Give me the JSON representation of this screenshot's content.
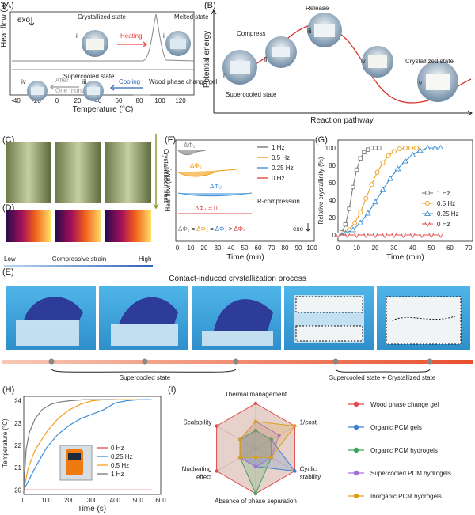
{
  "panels": {
    "A": {
      "letter": "(A)",
      "exo": "exo",
      "ylabel": "Heat flow (W g⁻¹)",
      "xlabel": "Temperature (°C)",
      "xticks": [
        "-40",
        "-20",
        "0",
        "20",
        "40",
        "60",
        "80",
        "100",
        "120"
      ],
      "states": {
        "i": "i",
        "ii": "ii",
        "iii": "iii",
        "iv": "iv"
      },
      "crystallized_state": "Crystallized state",
      "melted_state": "Melted state",
      "heating": "Heating",
      "supercooled_state": "Supercooled state",
      "cooling": "Cooling",
      "after": "After",
      "one_month": "One month",
      "legend": "Wood phase change gel",
      "colors": {
        "heating": "#e8403a",
        "cooling": "#2f63b8",
        "after": "#999999",
        "curve": "#888888"
      }
    },
    "B": {
      "letter": "(B)",
      "ylabel": "Potential energy",
      "xlabel": "Reaction pathway",
      "compress": "Compress",
      "release": "Release",
      "crystallized_state": "Crystallized state",
      "supercooled_state": "Supercooled state",
      "roman": [
        "i",
        "ii",
        "iii",
        "iv",
        "v"
      ],
      "curve_color": "#d9302a"
    },
    "C": {
      "letter": "(C)",
      "front_label": "Crystallization front"
    },
    "D": {
      "letter": "(D)",
      "low": "Low",
      "strain": "Compressive strain",
      "high": "High"
    },
    "F": {
      "letter": "(F)",
      "ylabel": "Heat flow (mW)",
      "xlabel": "Time (min)",
      "xticks": [
        "0",
        "10",
        "20",
        "30",
        "40",
        "50",
        "60",
        "70",
        "80",
        "90",
        "100"
      ],
      "phi1": "ΔΦ₁",
      "phi2": "ΔΦ₂",
      "phi3": "ΔΦ₃",
      "phi4": "ΔΦ₄ = 0",
      "r_compression": "R-compression",
      "exo": "exo",
      "relation": {
        "p1": "ΔΦ₁",
        "eq1": " = ",
        "p2": "ΔΦ₂",
        "eq2": " = ",
        "p3": "ΔΦ₃",
        "gt": " > ",
        "p4": "ΔΦ₄"
      },
      "legend": [
        "1 Hz",
        "0.5 Hz",
        "0.25 Hz",
        "0 Hz"
      ]
    },
    "G": {
      "letter": "(G)",
      "ylabel": "Relative crystallinity (%)",
      "xlabel": "Time (min)",
      "xticks": [
        "0",
        "10",
        "20",
        "30",
        "40",
        "50",
        "60",
        "70"
      ],
      "yticks": [
        "0",
        "20",
        "40",
        "60",
        "80",
        "100"
      ],
      "legend": [
        "1 Hz",
        "0.5 Hz",
        "0.25 Hz",
        "0 Hz"
      ]
    },
    "E": {
      "letter": "(E)",
      "title": "Contact-induced crystallization process",
      "supercooled": "Supercooled state",
      "mixed": "Supercooled state + Crystallized state"
    },
    "H": {
      "letter": "(H)",
      "ylabel": "Temperature (°C)",
      "xlabel": "Time (s)",
      "xticks": [
        "0",
        "100",
        "200",
        "300",
        "400",
        "500",
        "600"
      ],
      "yticks": [
        "20",
        "21",
        "22",
        "23",
        "24"
      ],
      "legend": [
        "0 Hz",
        "0.25 Hz",
        "0.5 Hz",
        "1 Hz"
      ]
    },
    "I": {
      "letter": "(I)",
      "axes": [
        "Thermal management",
        "1/cost",
        "Cyclic stability",
        "Absence of phase separation",
        "Nucleating effect",
        "Scalability"
      ],
      "legend": [
        "Wood phase change gel",
        "Organic PCM gels",
        "Organic PCM hydrogels",
        "Supercooled PCM hydrogels",
        "Inorganic PCM hydrogels"
      ]
    }
  },
  "chart_data": [
    {
      "type": "line",
      "panel": "G",
      "xlabel": "Time (min)",
      "ylabel": "Relative crystallinity (%)",
      "xlim": [
        0,
        70
      ],
      "ylim": [
        0,
        100
      ],
      "series": [
        {
          "name": "1 Hz",
          "color": "#7a7a7a",
          "marker": "square",
          "x": [
            0,
            2,
            4,
            6,
            8,
            10,
            12,
            14,
            16,
            18,
            20,
            22
          ],
          "y": [
            0,
            3,
            12,
            30,
            55,
            75,
            88,
            95,
            98,
            100,
            100,
            100
          ]
        },
        {
          "name": "0.5 Hz",
          "color": "#f0a020",
          "marker": "circle",
          "x": [
            0,
            3,
            6,
            9,
            12,
            15,
            18,
            21,
            24,
            27,
            30,
            33,
            36,
            39,
            42,
            45
          ],
          "y": [
            0,
            2,
            6,
            14,
            26,
            42,
            58,
            72,
            83,
            91,
            96,
            99,
            100,
            100,
            100,
            100
          ]
        },
        {
          "name": "0.25 Hz",
          "color": "#3d8fd6",
          "marker": "triangle",
          "x": [
            0,
            4,
            8,
            12,
            16,
            20,
            24,
            28,
            32,
            36,
            40,
            44,
            48,
            52,
            55
          ],
          "y": [
            0,
            2,
            6,
            14,
            25,
            38,
            52,
            65,
            76,
            85,
            92,
            97,
            100,
            100,
            100
          ]
        },
        {
          "name": "0 Hz",
          "color": "#e04a4a",
          "marker": "triangle-down",
          "x": [
            0,
            5,
            10,
            15,
            20,
            25,
            30,
            35,
            40,
            45,
            50,
            55
          ],
          "y": [
            0,
            0,
            0,
            0,
            0,
            0,
            0,
            0,
            0,
            0,
            0,
            0
          ]
        }
      ]
    },
    {
      "type": "line",
      "panel": "H",
      "xlabel": "Time (s)",
      "ylabel": "Temperature (°C)",
      "xlim": [
        0,
        600
      ],
      "ylim": [
        19.8,
        24.2
      ],
      "series": [
        {
          "name": "0 Hz",
          "color": "#e04a4a",
          "x": [
            0,
            100,
            200,
            300,
            400,
            500,
            560
          ],
          "y": [
            20,
            20,
            20,
            20,
            20,
            20,
            20
          ]
        },
        {
          "name": "0.25 Hz",
          "color": "#3d8fd6",
          "x": [
            0,
            20,
            50,
            100,
            150,
            200,
            250,
            300,
            350,
            400,
            450,
            500,
            560
          ],
          "y": [
            20,
            20.4,
            21.0,
            21.9,
            22.5,
            22.9,
            23.2,
            23.4,
            23.6,
            23.9,
            24.0,
            24.05,
            24.05
          ]
        },
        {
          "name": "0.5 Hz",
          "color": "#f0a020",
          "x": [
            0,
            20,
            50,
            100,
            150,
            200,
            250,
            300,
            350,
            400,
            500
          ],
          "y": [
            20,
            21.0,
            21.8,
            22.6,
            23.2,
            23.6,
            23.85,
            24.0,
            24.05,
            24.05,
            24.05
          ]
        },
        {
          "name": "1 Hz",
          "color": "#7a7a7a",
          "x": [
            0,
            10,
            25,
            50,
            80,
            120,
            160,
            200,
            260,
            320,
            400
          ],
          "y": [
            20,
            21.8,
            22.6,
            23.2,
            23.6,
            23.85,
            23.95,
            24.0,
            24.05,
            24.05,
            24.05
          ]
        }
      ]
    },
    {
      "type": "radar",
      "panel": "I",
      "axes": [
        "Thermal management",
        "1/cost",
        "Cyclic stability",
        "Absence of phase separation",
        "Nucleating effect",
        "Scalability"
      ],
      "rmax": 5,
      "series": [
        {
          "name": "Wood phase change gel",
          "color": "#e04a4a",
          "values": [
            5,
            5,
            5,
            5,
            5,
            5
          ]
        },
        {
          "name": "Organic PCM gels",
          "color": "#3d7fd0",
          "values": [
            2,
            2,
            5,
            2,
            2,
            2
          ]
        },
        {
          "name": "Organic PCM hydrogels",
          "color": "#3aa55a",
          "values": [
            2,
            2,
            2,
            5,
            2,
            2
          ]
        },
        {
          "name": "Supercooled PCM hydrogels",
          "color": "#a370d8",
          "values": [
            3,
            3,
            2,
            2,
            2,
            2
          ]
        },
        {
          "name": "Inorganic PCM hydrogels",
          "color": "#d9a020",
          "values": [
            3,
            5,
            2,
            1,
            2,
            2
          ]
        }
      ]
    },
    {
      "type": "line",
      "panel": "F",
      "xlabel": "Time (min)",
      "ylabel": "Heat flow (mW)",
      "xlim": [
        0,
        100
      ],
      "series": [
        {
          "name": "1 Hz",
          "color": "#7a7a7a",
          "peak_time": 8
        },
        {
          "name": "0.5 Hz",
          "color": "#f0a020",
          "peak_time": 15
        },
        {
          "name": "0.25 Hz",
          "color": "#3d8fd6",
          "peak_time": 22
        },
        {
          "name": "0 Hz",
          "color": "#e04a4a",
          "peak_time": null
        }
      ]
    }
  ]
}
